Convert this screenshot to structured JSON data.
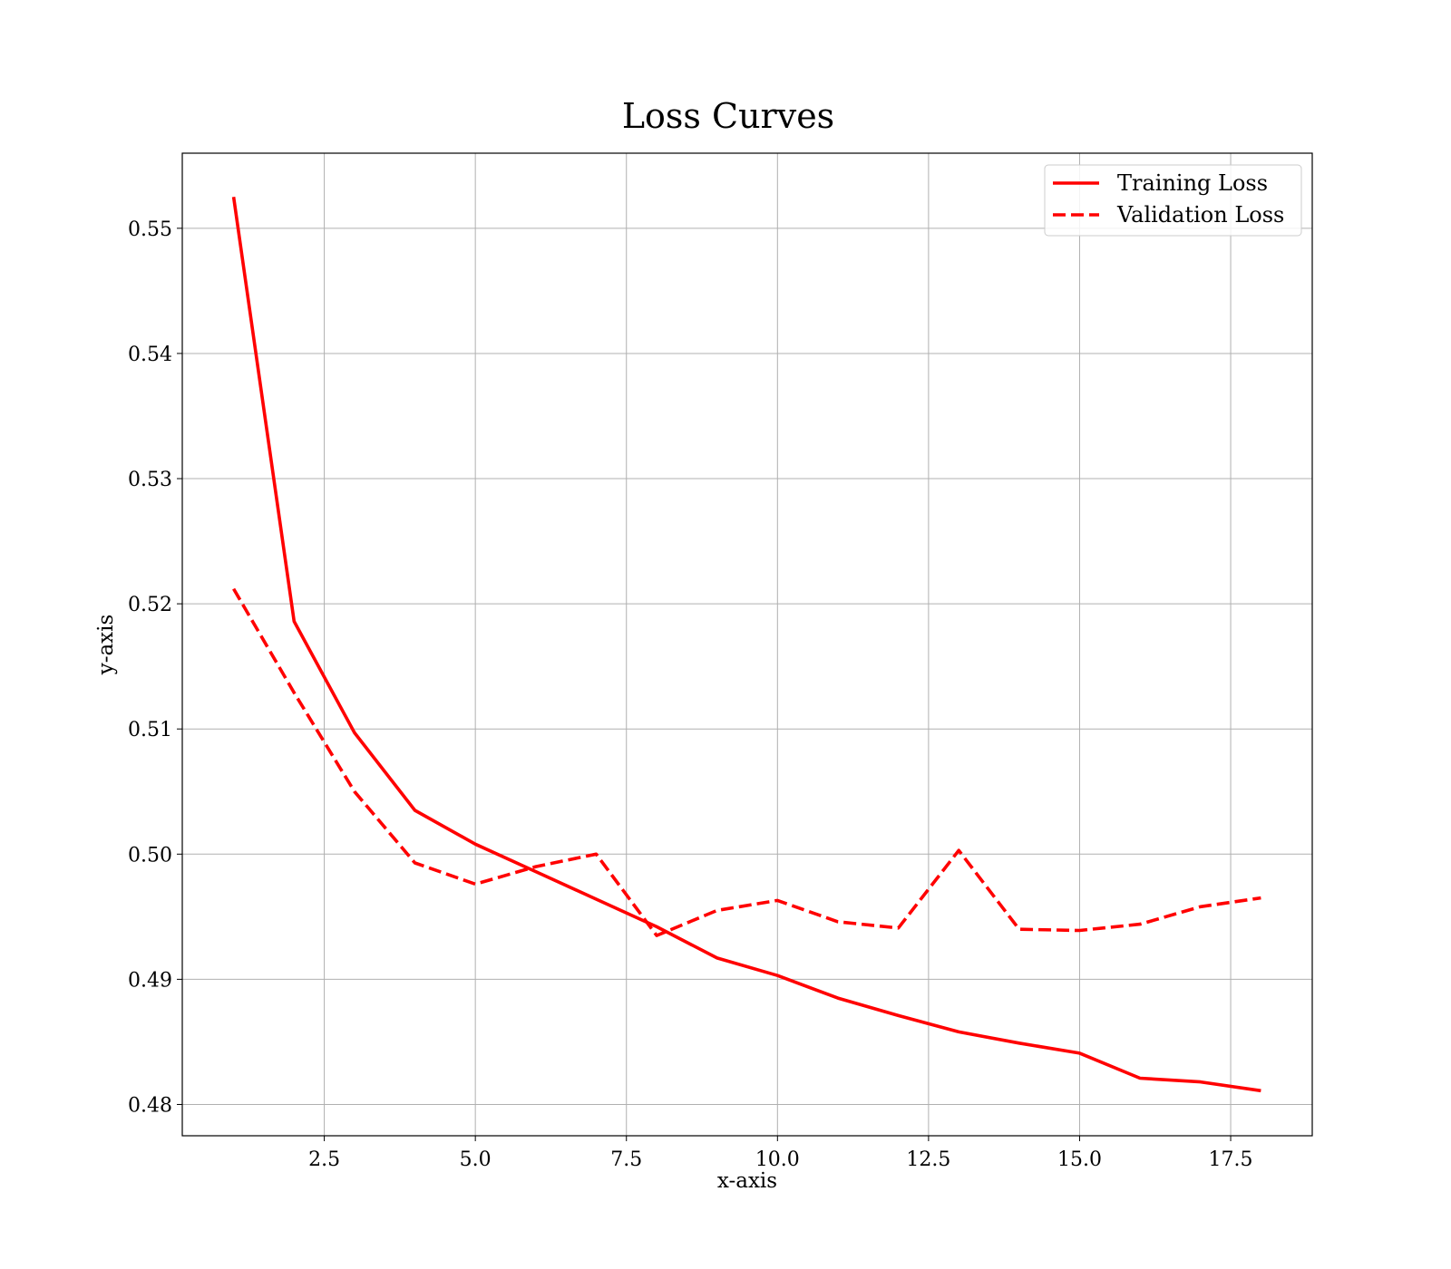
{
  "chart_data": {
    "type": "line",
    "title": "Loss Curves",
    "xlabel": "x-axis",
    "ylabel": "y-axis",
    "xlim": [
      0.15,
      18.85
    ],
    "ylim": [
      0.4775,
      0.556
    ],
    "xticks": [
      2.5,
      5.0,
      7.5,
      10.0,
      12.5,
      15.0,
      17.5
    ],
    "xtick_labels": [
      "2.5",
      "5.0",
      "7.5",
      "10.0",
      "12.5",
      "15.0",
      "17.5"
    ],
    "yticks": [
      0.48,
      0.49,
      0.5,
      0.51,
      0.52,
      0.53,
      0.54,
      0.55
    ],
    "ytick_labels": [
      "0.48",
      "0.49",
      "0.50",
      "0.51",
      "0.52",
      "0.53",
      "0.54",
      "0.55"
    ],
    "grid": true,
    "legend_position": "top-right",
    "x": [
      1,
      2,
      3,
      4,
      5,
      6,
      7,
      8,
      9,
      10,
      11,
      12,
      13,
      14,
      15,
      16,
      17,
      18
    ],
    "series": [
      {
        "name": "Training Loss",
        "color": "#ff0000",
        "style": "solid",
        "values": [
          0.5525,
          0.5186,
          0.5097,
          0.5035,
          0.5008,
          0.4986,
          0.4964,
          0.4942,
          0.4917,
          0.4903,
          0.4885,
          0.4871,
          0.4858,
          0.4849,
          0.4841,
          0.4821,
          0.4818,
          0.4811
        ]
      },
      {
        "name": "Validation Loss",
        "color": "#ff0000",
        "style": "dashed",
        "values": [
          0.5212,
          0.5129,
          0.505,
          0.4993,
          0.4976,
          0.499,
          0.5,
          0.4935,
          0.4955,
          0.4963,
          0.4946,
          0.4941,
          0.5003,
          0.494,
          0.4939,
          0.4944,
          0.4958,
          0.4965
        ]
      }
    ]
  }
}
